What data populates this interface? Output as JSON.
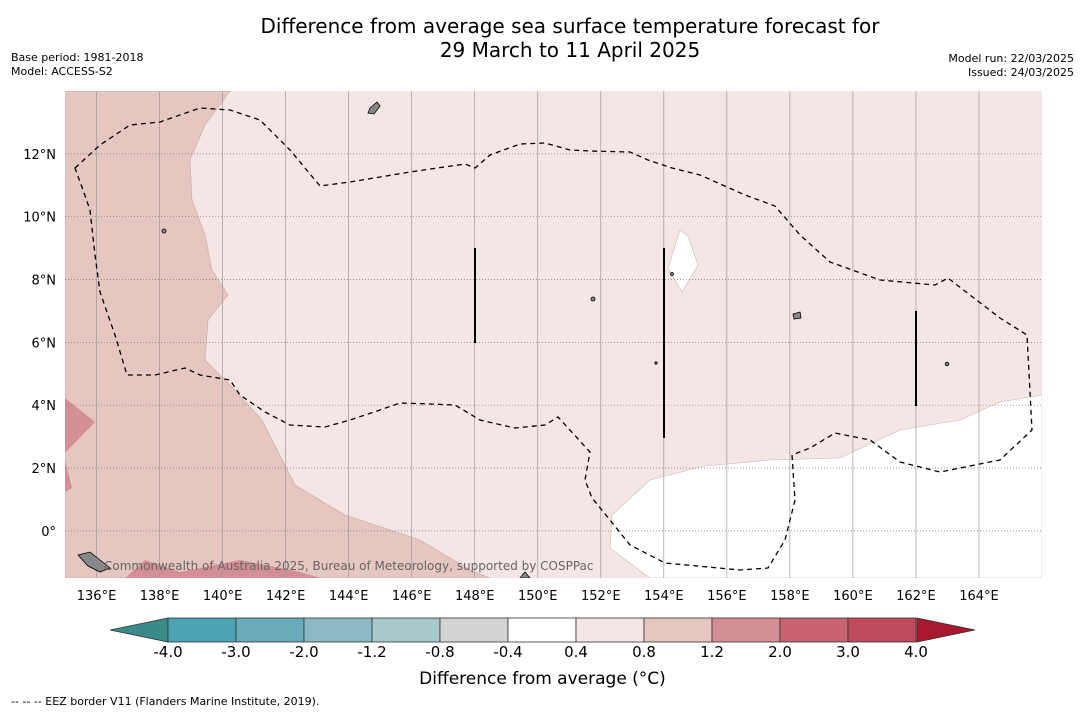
{
  "header": {
    "title_line1": "Difference from average sea surface temperature forecast for",
    "title_line2": "29 March to 11 April 2025",
    "base_period": "Base period: 1981-2018",
    "model": "Model: ACCESS-S2",
    "model_run": "Model run: 22/03/2025",
    "issued": "Issued: 24/03/2025"
  },
  "map": {
    "lon_range": [
      135,
      166
    ],
    "lat_range": [
      -1.5,
      14
    ],
    "lon_ticks": [
      "136°E",
      "138°E",
      "140°E",
      "142°E",
      "144°E",
      "146°E",
      "148°E",
      "150°E",
      "152°E",
      "154°E",
      "156°E",
      "158°E",
      "160°E",
      "162°E",
      "164°E"
    ],
    "lat_ticks": [
      "12°N",
      "10°N",
      "8°N",
      "6°N",
      "4°N",
      "2°N",
      "0°"
    ],
    "watermark": "Commonwealth of Australia 2025, Bureau of Meteorology, supported by COSPPac",
    "colors": {
      "anomaly_0_4_to_0_8": "#f4e6e4",
      "anomaly_0_8_to_1_2": "#e6c6c1",
      "anomaly_1_2_to_2_0": "#d48e95",
      "anomaly_neg0_4_to_0_4": "#ffffff"
    }
  },
  "colorbar": {
    "labels": [
      "-4.0",
      "-3.0",
      "-2.0",
      "-1.2",
      "-0.8",
      "-0.4",
      "0.4",
      "0.8",
      "1.2",
      "2.0",
      "3.0",
      "4.0"
    ],
    "colors": [
      "#4ba3b4",
      "#69aabb",
      "#8cb9c4",
      "#a9c8cc",
      "#d2d4d4",
      "#ffffff",
      "#f4e6e4",
      "#e6c6c1",
      "#d48e95",
      "#c86470",
      "#be4a5a"
    ],
    "under_color": "#3b8a8a",
    "over_color": "#a8182e",
    "title": "Difference from average (°C)"
  },
  "footer": {
    "note": "-- -- -- EEZ border V11 (Flanders Marine Institute, 2019)."
  }
}
